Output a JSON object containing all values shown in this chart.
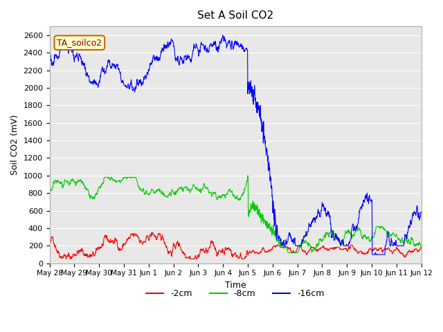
{
  "title": "Set A Soil CO2",
  "xlabel": "Time",
  "ylabel": "Soil CO2 (mV)",
  "ylim": [
    0,
    2700
  ],
  "yticks": [
    0,
    200,
    400,
    600,
    800,
    1000,
    1200,
    1400,
    1600,
    1800,
    2000,
    2200,
    2400,
    2600
  ],
  "bg_color": "#e8e8e8",
  "legend_label": "TA_soilco2",
  "legend_bg": "#ffffcc",
  "legend_border": "#cc6600",
  "series": [
    {
      "label": "-2cm",
      "color": "#ff0000"
    },
    {
      "label": "-8cm",
      "color": "#00cc00"
    },
    {
      "label": "-16cm",
      "color": "#0000ff"
    }
  ],
  "xtick_labels": [
    "May 28",
    "May 29",
    "May 30",
    "May 31",
    "Jun 1",
    "Jun 2",
    "Jun 3",
    "Jun 4",
    "Jun 5",
    "Jun 6",
    "Jun 7",
    "Jun 8",
    "Jun 9",
    "Jun 10",
    "Jun 11",
    "Jun 12"
  ],
  "xtick_positions": [
    0,
    96,
    192,
    288,
    384,
    480,
    576,
    672,
    768,
    864,
    960,
    1056,
    1152,
    1248,
    1344,
    1440
  ]
}
